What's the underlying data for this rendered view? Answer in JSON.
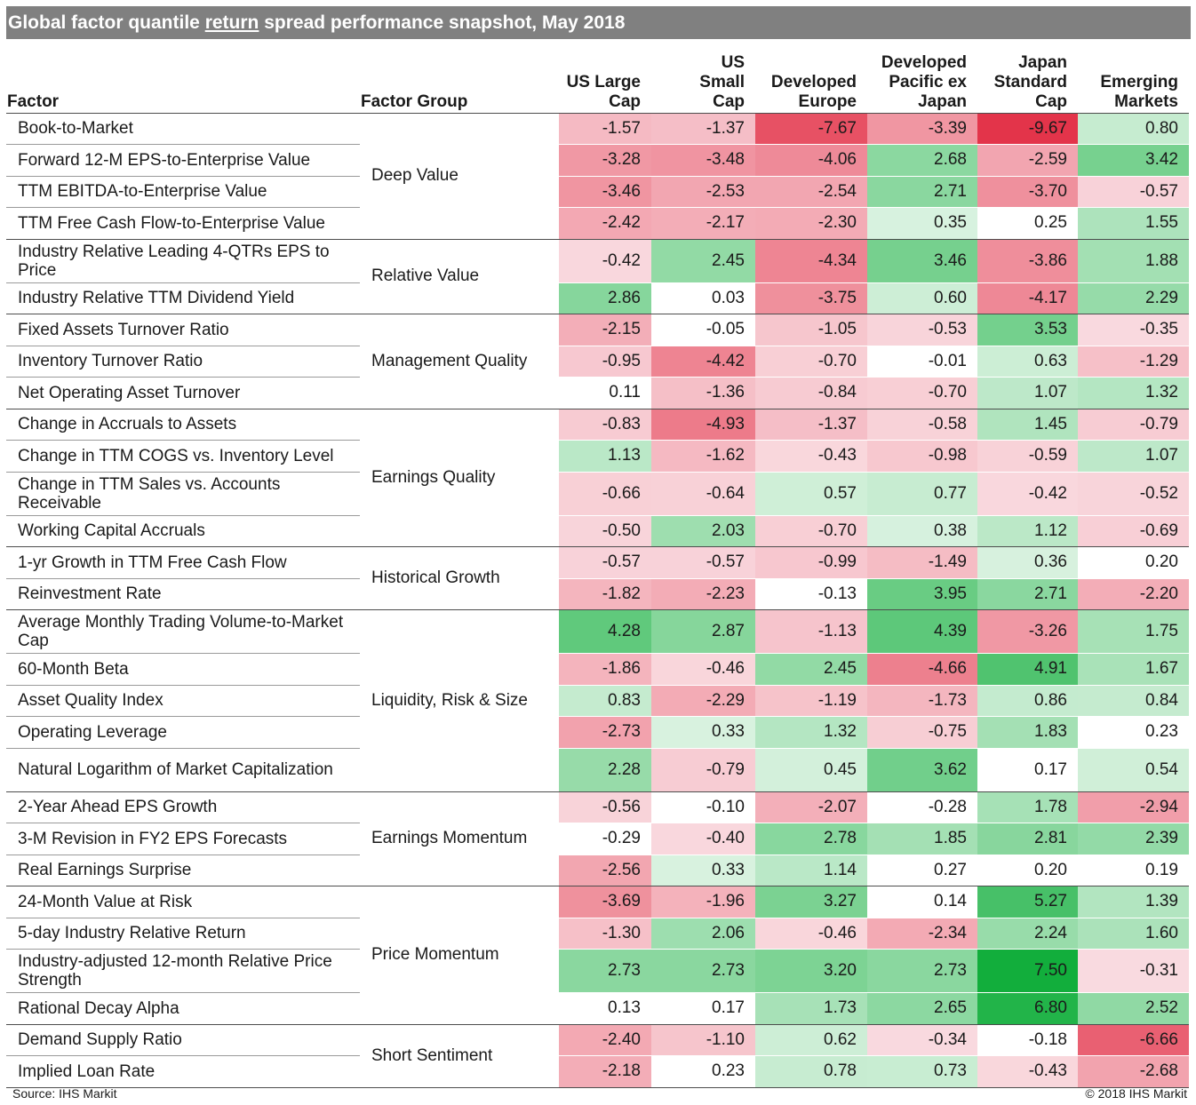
{
  "title": {
    "before": "Global factor quantile ",
    "underlined": "return",
    "after": " spread performance snapshot, May 2018"
  },
  "footer": {
    "source": "Source: IHS Markit",
    "copyright": "© 2018 IHS Markit"
  },
  "colors": {
    "title_bg": "#808080",
    "negative_extreme": "#e3344a",
    "positive_extreme": "#12ae3c",
    "neutral": "#ffffff"
  },
  "chart_data": {
    "type": "heatmap",
    "title": "Global factor quantile return spread performance snapshot, May 2018",
    "row_header": "Factor",
    "group_header": "Factor Group",
    "columns": [
      [
        "US Large",
        "Cap"
      ],
      [
        "US",
        "Small",
        "Cap"
      ],
      [
        "Developed",
        "Europe"
      ],
      [
        "Developed",
        "Pacific ex",
        "Japan"
      ],
      [
        "Japan",
        "Standard",
        "Cap"
      ],
      [
        "Emerging",
        "Markets"
      ]
    ],
    "groups": [
      {
        "name": "Deep Value",
        "rows": [
          {
            "factor": "Book-to-Market",
            "values": [
              -1.57,
              -1.37,
              -7.67,
              -3.39,
              -9.67,
              0.8
            ]
          },
          {
            "factor": "Forward 12-M EPS-to-Enterprise Value",
            "values": [
              -3.28,
              -3.48,
              -4.06,
              2.68,
              -2.59,
              3.42
            ]
          },
          {
            "factor": "TTM EBITDA-to-Enterprise Value",
            "values": [
              -3.46,
              -2.53,
              -2.54,
              2.71,
              -3.7,
              -0.57
            ]
          },
          {
            "factor": "TTM Free Cash Flow-to-Enterprise Value",
            "values": [
              -2.42,
              -2.17,
              -2.3,
              0.35,
              0.25,
              1.55
            ]
          }
        ]
      },
      {
        "name": "Relative Value",
        "rows": [
          {
            "factor": "Industry Relative Leading 4-QTRs EPS to Price",
            "values": [
              -0.42,
              2.45,
              -4.34,
              3.46,
              -3.86,
              1.88
            ]
          },
          {
            "factor": "Industry Relative TTM Dividend Yield",
            "values": [
              2.86,
              0.03,
              -3.75,
              0.6,
              -4.17,
              2.29
            ]
          }
        ]
      },
      {
        "name": "Management Quality",
        "rows": [
          {
            "factor": "Fixed Assets Turnover Ratio",
            "values": [
              -2.15,
              -0.05,
              -1.05,
              -0.53,
              3.53,
              -0.35
            ]
          },
          {
            "factor": "Inventory Turnover Ratio",
            "values": [
              -0.95,
              -4.42,
              -0.7,
              -0.01,
              0.63,
              -1.29
            ]
          },
          {
            "factor": "Net Operating Asset Turnover",
            "values": [
              0.11,
              -1.36,
              -0.84,
              -0.7,
              1.07,
              1.32
            ]
          }
        ]
      },
      {
        "name": "Earnings Quality",
        "rows": [
          {
            "factor": "Change in Accruals to Assets",
            "values": [
              -0.83,
              -4.93,
              -1.37,
              -0.58,
              1.45,
              -0.79
            ]
          },
          {
            "factor": "Change in TTM COGS vs. Inventory Level",
            "values": [
              1.13,
              -1.62,
              -0.43,
              -0.98,
              -0.59,
              1.07
            ]
          },
          {
            "factor": "Change in TTM Sales vs. Accounts Receivable",
            "values": [
              -0.66,
              -0.64,
              0.57,
              0.77,
              -0.42,
              -0.52
            ]
          },
          {
            "factor": "Working Capital Accruals",
            "values": [
              -0.5,
              2.03,
              -0.7,
              0.38,
              1.12,
              -0.69
            ]
          }
        ]
      },
      {
        "name": "Historical Growth",
        "rows": [
          {
            "factor": "1-yr Growth in TTM Free Cash Flow",
            "values": [
              -0.57,
              -0.57,
              -0.99,
              -1.49,
              0.36,
              0.2
            ]
          },
          {
            "factor": "Reinvestment Rate",
            "values": [
              -1.82,
              -2.23,
              -0.13,
              3.95,
              2.71,
              -2.2
            ]
          }
        ]
      },
      {
        "name": "Liquidity, Risk & Size",
        "rows": [
          {
            "factor": "Average Monthly Trading Volume-to-Market Cap",
            "values": [
              4.28,
              2.87,
              -1.13,
              4.39,
              -3.26,
              1.75
            ]
          },
          {
            "factor": "60-Month Beta",
            "values": [
              -1.86,
              -0.46,
              2.45,
              -4.66,
              4.91,
              1.67
            ]
          },
          {
            "factor": "Asset Quality Index",
            "values": [
              0.83,
              -2.29,
              -1.19,
              -1.73,
              0.86,
              0.84
            ]
          },
          {
            "factor": "Operating Leverage",
            "values": [
              -2.73,
              0.33,
              1.32,
              -0.75,
              1.83,
              0.23
            ]
          },
          {
            "factor": "Natural Logarithm of Market Capitalization",
            "values": [
              2.28,
              -0.79,
              0.45,
              3.62,
              0.17,
              0.54
            ]
          }
        ]
      },
      {
        "name": "Earnings Momentum",
        "rows": [
          {
            "factor": "2-Year Ahead EPS Growth",
            "values": [
              -0.56,
              -0.1,
              -2.07,
              -0.28,
              1.78,
              -2.94
            ]
          },
          {
            "factor": "3-M Revision in FY2 EPS Forecasts",
            "values": [
              -0.29,
              -0.4,
              2.78,
              1.85,
              2.81,
              2.39
            ]
          },
          {
            "factor": "Real Earnings Surprise",
            "values": [
              -2.56,
              0.33,
              1.14,
              0.27,
              0.2,
              0.19
            ]
          }
        ]
      },
      {
        "name": "Price Momentum",
        "rows": [
          {
            "factor": "24-Month Value at Risk",
            "values": [
              -3.69,
              -1.96,
              3.27,
              0.14,
              5.27,
              1.39
            ]
          },
          {
            "factor": "5-day Industry Relative Return",
            "values": [
              -1.3,
              2.06,
              -0.46,
              -2.34,
              2.24,
              1.6
            ]
          },
          {
            "factor": "Industry-adjusted 12-month Relative Price Strength",
            "values": [
              2.73,
              2.73,
              3.2,
              2.73,
              7.5,
              -0.31
            ]
          },
          {
            "factor": "Rational Decay Alpha",
            "values": [
              0.13,
              0.17,
              1.73,
              2.65,
              6.8,
              2.52
            ]
          }
        ]
      },
      {
        "name": "Short Sentiment",
        "rows": [
          {
            "factor": "Demand Supply Ratio",
            "values": [
              -2.4,
              -1.1,
              0.62,
              -0.34,
              -0.18,
              -6.66
            ]
          },
          {
            "factor": "Implied Loan Rate",
            "values": [
              -2.18,
              0.23,
              0.78,
              0.73,
              -0.43,
              -2.68
            ]
          }
        ]
      }
    ]
  }
}
